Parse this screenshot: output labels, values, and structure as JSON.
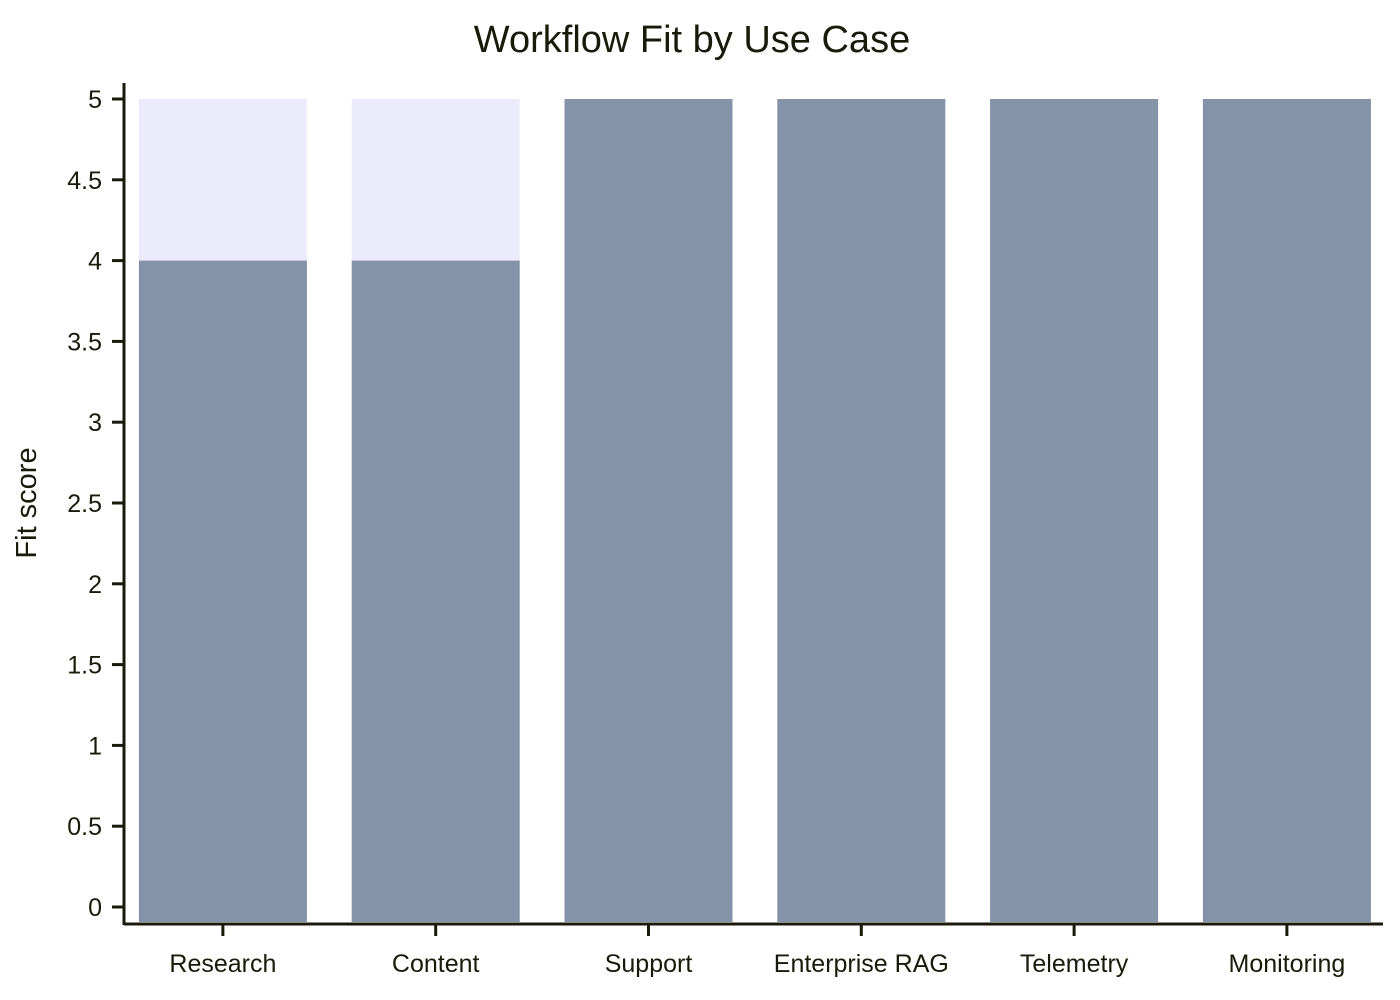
{
  "chart_data": {
    "type": "bar",
    "title": "Workflow Fit by Use Case",
    "xlabel": "",
    "ylabel": "Fit score",
    "categories": [
      "Research",
      "Content",
      "Support",
      "Enterprise RAG",
      "Telemetry",
      "Monitoring"
    ],
    "values": [
      4,
      4,
      5,
      5,
      5,
      5
    ],
    "max_values": [
      5,
      5,
      5,
      5,
      5,
      5
    ],
    "ylim": [
      0,
      5
    ],
    "yticks": [
      0,
      0.5,
      1,
      1.5,
      2,
      2.5,
      3,
      3.5,
      4,
      4.5,
      5
    ],
    "ytick_labels": [
      "0",
      "0.5",
      "1",
      "1.5",
      "2",
      "2.5",
      "3",
      "3.5",
      "4",
      "4.5",
      "5"
    ],
    "grid": false,
    "legend": "none",
    "colors": {
      "bar": "#8493a8",
      "background_bar": "#ebebfb",
      "axis": "#1a1a0a",
      "text": "#1a1a0a"
    }
  }
}
